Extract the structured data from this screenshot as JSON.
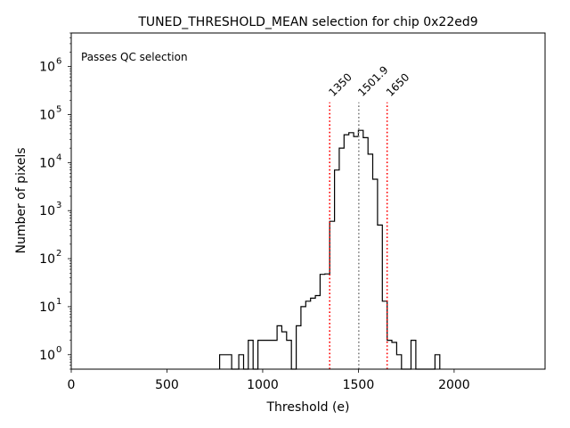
{
  "chart_data": {
    "type": "histogram",
    "title": "TUNED_THRESHOLD_MEAN selection for chip 0x22ed9",
    "xlabel": "Threshold (e)",
    "ylabel": "Number of pixels",
    "xlim": [
      0,
      2475
    ],
    "ylim": [
      0.5,
      5000000
    ],
    "yscale": "log",
    "grid": false,
    "x_ticks": [
      {
        "value": 0,
        "label": "0"
      },
      {
        "value": 500,
        "label": "500"
      },
      {
        "value": 1000,
        "label": "1000"
      },
      {
        "value": 1500,
        "label": "1500"
      },
      {
        "value": 2000,
        "label": "2000"
      }
    ],
    "y_ticks": [
      {
        "value": 1,
        "base": "10",
        "exp": "0"
      },
      {
        "value": 10,
        "base": "10",
        "exp": "1"
      },
      {
        "value": 100,
        "base": "10",
        "exp": "2"
      },
      {
        "value": 1000,
        "base": "10",
        "exp": "3"
      },
      {
        "value": 10000,
        "base": "10",
        "exp": "4"
      },
      {
        "value": 100000,
        "base": "10",
        "exp": "5"
      },
      {
        "value": 1000000,
        "base": "10",
        "exp": "6"
      }
    ],
    "bins": [
      {
        "x0": 775,
        "x1": 838,
        "count": 1
      },
      {
        "x0": 838,
        "x1": 875,
        "count": 0
      },
      {
        "x0": 875,
        "x1": 900,
        "count": 1
      },
      {
        "x0": 900,
        "x1": 925,
        "count": 0
      },
      {
        "x0": 925,
        "x1": 950,
        "count": 2
      },
      {
        "x0": 950,
        "x1": 975,
        "count": 0
      },
      {
        "x0": 975,
        "x1": 1075,
        "count": 2
      },
      {
        "x0": 1075,
        "x1": 1100,
        "count": 4
      },
      {
        "x0": 1100,
        "x1": 1125,
        "count": 3
      },
      {
        "x0": 1125,
        "x1": 1150,
        "count": 2
      },
      {
        "x0": 1150,
        "x1": 1175,
        "count": 0
      },
      {
        "x0": 1175,
        "x1": 1200,
        "count": 4
      },
      {
        "x0": 1200,
        "x1": 1225,
        "count": 10
      },
      {
        "x0": 1225,
        "x1": 1250,
        "count": 13
      },
      {
        "x0": 1250,
        "x1": 1275,
        "count": 15
      },
      {
        "x0": 1275,
        "x1": 1300,
        "count": 17
      },
      {
        "x0": 1300,
        "x1": 1325,
        "count": 47
      },
      {
        "x0": 1325,
        "x1": 1350,
        "count": 48
      },
      {
        "x0": 1350,
        "x1": 1375,
        "count": 600
      },
      {
        "x0": 1375,
        "x1": 1400,
        "count": 7000
      },
      {
        "x0": 1400,
        "x1": 1425,
        "count": 20000
      },
      {
        "x0": 1425,
        "x1": 1450,
        "count": 38000
      },
      {
        "x0": 1450,
        "x1": 1475,
        "count": 42000
      },
      {
        "x0": 1475,
        "x1": 1500,
        "count": 35000
      },
      {
        "x0": 1500,
        "x1": 1525,
        "count": 47000
      },
      {
        "x0": 1525,
        "x1": 1550,
        "count": 33000
      },
      {
        "x0": 1550,
        "x1": 1575,
        "count": 15000
      },
      {
        "x0": 1575,
        "x1": 1600,
        "count": 4500
      },
      {
        "x0": 1600,
        "x1": 1625,
        "count": 500
      },
      {
        "x0": 1625,
        "x1": 1650,
        "count": 13
      },
      {
        "x0": 1650,
        "x1": 1675,
        "count": 2
      },
      {
        "x0": 1675,
        "x1": 1700,
        "count": 1.8
      },
      {
        "x0": 1700,
        "x1": 1725,
        "count": 1
      },
      {
        "x0": 1725,
        "x1": 1775,
        "count": 0.5
      },
      {
        "x0": 1775,
        "x1": 1800,
        "count": 2
      },
      {
        "x0": 1800,
        "x1": 1900,
        "count": 0
      },
      {
        "x0": 1900,
        "x1": 1925,
        "count": 1
      }
    ],
    "vlines": [
      {
        "x": 1350,
        "label": "1350",
        "color": "#ff0000"
      },
      {
        "x": 1501.9,
        "label": "1501.9",
        "color": "#808080"
      },
      {
        "x": 1650,
        "label": "1650",
        "color": "#ff0000"
      }
    ],
    "vline_top": 180000,
    "annotation": {
      "text": "Passes QC selection",
      "color": "#008000"
    },
    "colors": {
      "line": "#000000"
    }
  }
}
